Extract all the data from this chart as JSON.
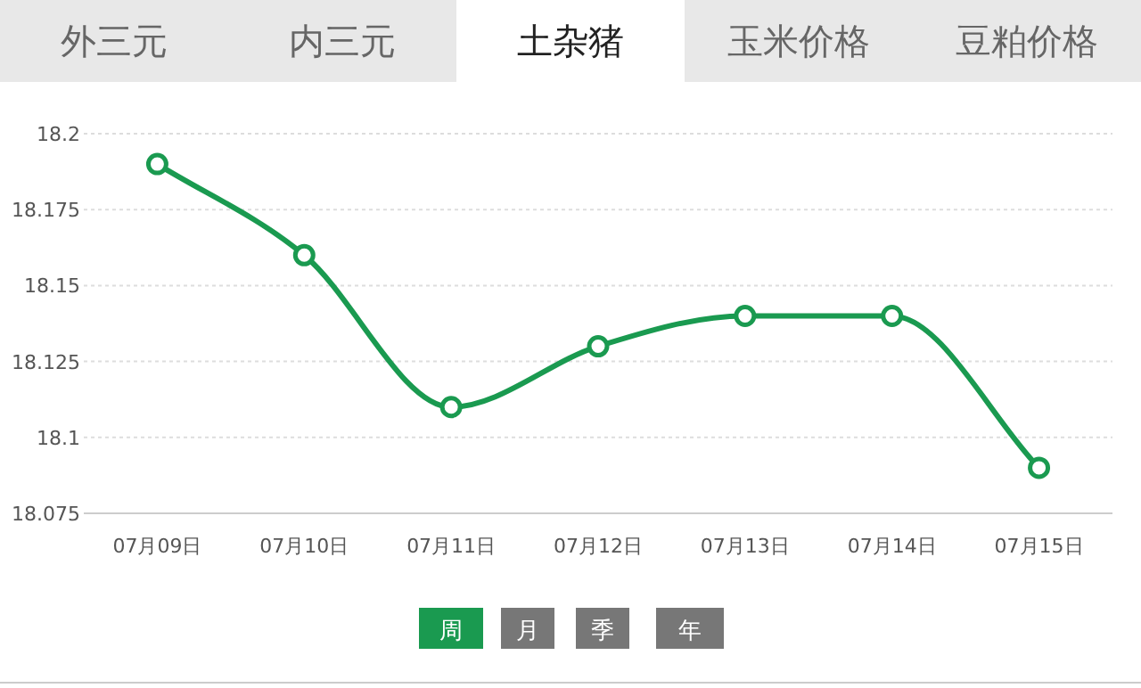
{
  "chart_data": {
    "type": "line",
    "categories": [
      "07月09日",
      "07月10日",
      "07月11日",
      "07月12日",
      "07月13日",
      "07月14日",
      "07月15日"
    ],
    "series": [
      {
        "color": "#1a9a50",
        "values": [
          18.19,
          18.16,
          18.11,
          18.13,
          18.14,
          18.14,
          18.09
        ]
      }
    ],
    "ylim": [
      18.075,
      18.2
    ],
    "yticks": [
      18.075,
      18.1,
      18.125,
      18.15,
      18.175,
      18.2
    ],
    "grid": "y",
    "marker": "circle",
    "line_style": "solid",
    "annotations": [
      "外三元",
      "内三元",
      "土杂猪",
      "玉米价格",
      "豆粕价格",
      "周",
      "月",
      "季",
      "年"
    ]
  }
}
